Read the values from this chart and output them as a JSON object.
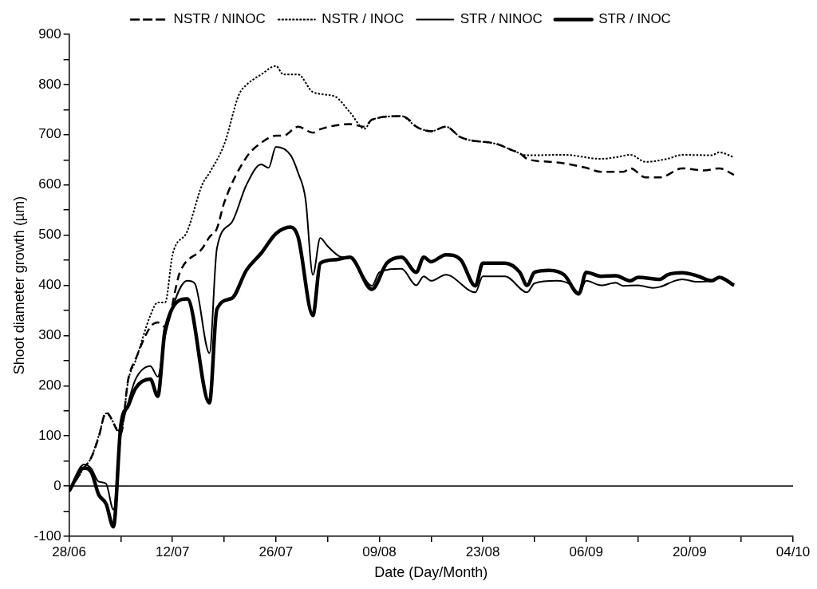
{
  "chart_data": {
    "type": "line",
    "xlabel": "Date (Day/Month)",
    "ylabel": "Shoot diameter growth (µm)",
    "xlim": [
      "--06-28",
      "--10-04"
    ],
    "xticks": [
      {
        "value": "--06-28",
        "label": "28/06"
      },
      {
        "value": "--07-05",
        "label": null
      },
      {
        "value": "--07-12",
        "label": "12/07"
      },
      {
        "value": "--07-19",
        "label": null
      },
      {
        "value": "--07-26",
        "label": "26/07"
      },
      {
        "value": "--08-02",
        "label": null
      },
      {
        "value": "--08-09",
        "label": "09/08"
      },
      {
        "value": "--08-16",
        "label": null
      },
      {
        "value": "--08-23",
        "label": "23/08"
      },
      {
        "value": "--08-30",
        "label": null
      },
      {
        "value": "--09-06",
        "label": "06/09"
      },
      {
        "value": "--09-13",
        "label": null
      },
      {
        "value": "--09-20",
        "label": "20/09"
      },
      {
        "value": "--09-27",
        "label": null
      },
      {
        "value": "--10-04",
        "label": "04/10"
      }
    ],
    "ylim": [
      -100,
      900
    ],
    "yticks": [
      -100,
      {
        "value": -50,
        "label": null
      },
      0,
      {
        "value": 50,
        "label": null
      },
      100,
      {
        "value": 150,
        "label": null
      },
      200,
      {
        "value": 250,
        "label": null
      },
      300,
      {
        "value": 350,
        "label": null
      },
      400,
      {
        "value": 450,
        "label": null
      },
      500,
      {
        "value": 550,
        "label": null
      },
      600,
      {
        "value": 650,
        "label": null
      },
      700,
      {
        "value": 750,
        "label": null
      },
      800,
      {
        "value": 850,
        "label": null
      },
      900
    ],
    "grid": false,
    "legend": "top",
    "marker": "none",
    "ref_lines": [
      {
        "axis": "y",
        "value": 0,
        "color": "#000000"
      }
    ],
    "series": [
      {
        "name": "NSTR / NINOC",
        "color": "#000000",
        "line_style": "dashed",
        "x": [
          "--06-28",
          "--06-30",
          "--07-01",
          "--07-02",
          "--07-03",
          "--07-05",
          "--07-06",
          "--07-07",
          "--07-09",
          "--07-10",
          "--07-11",
          "--07-13",
          "--07-16",
          "--07-17",
          "--07-18",
          "--07-19",
          "--07-22",
          "--07-24",
          "--07-26",
          "--07-27",
          "--07-29",
          "--07-31",
          "--08-01",
          "--08-05",
          "--08-07",
          "--08-08",
          "--08-12",
          "--08-13",
          "--08-14",
          "--08-16",
          "--08-18",
          "--08-20",
          "--08-25",
          "--08-27",
          "--08-28",
          "--08-29",
          "--09-01",
          "--09-03",
          "--09-06",
          "--09-08",
          "--09-11",
          "--09-12",
          "--09-14",
          "--09-16",
          "--09-19",
          "--09-22",
          "--09-24",
          "--09-26"
        ],
        "values": [
          -10,
          36,
          57,
          97,
          147,
          104,
          213,
          253,
          317,
          326,
          317,
          426,
          473,
          496,
          513,
          565,
          655,
          684,
          698,
          698,
          716,
          704,
          711,
          721,
          716,
          730,
          737,
          730,
          716,
          707,
          716,
          695,
          681,
          669,
          663,
          652,
          646,
          643,
          634,
          626,
          626,
          633,
          615,
          615,
          633,
          629,
          633,
          620
        ]
      },
      {
        "name": "NSTR / INOC",
        "color": "#000000",
        "line_style": "dotted",
        "x": [
          "--06-28",
          "--06-30",
          "--07-01",
          "--07-02",
          "--07-03",
          "--07-05",
          "--07-06",
          "--07-07",
          "--07-09",
          "--07-10",
          "--07-11",
          "--07-12",
          "--07-14",
          "--07-16",
          "--07-17",
          "--07-19",
          "--07-21",
          "--07-22",
          "--07-24",
          "--07-26",
          "--07-27",
          "--07-29",
          "--07-31",
          "--08-03",
          "--08-05",
          "--08-07",
          "--08-08",
          "--08-12",
          "--08-14",
          "--08-16",
          "--08-18",
          "--08-20",
          "--08-25",
          "--08-27",
          "--08-29",
          "--09-03",
          "--09-08",
          "--09-10",
          "--09-12",
          "--09-14",
          "--09-17",
          "--09-19",
          "--09-23",
          "--09-24",
          "--09-26"
        ],
        "values": [
          -10,
          36,
          57,
          100,
          145,
          108,
          210,
          250,
          340,
          366,
          366,
          461,
          508,
          600,
          624,
          681,
          780,
          799,
          820,
          837,
          820,
          820,
          785,
          776,
          745,
          712,
          730,
          737,
          716,
          707,
          716,
          695,
          681,
          669,
          659,
          660,
          652,
          655,
          660,
          646,
          652,
          660,
          659,
          665,
          655
        ]
      },
      {
        "name": "STR / NINOC",
        "color": "#000000",
        "line_style": "solid",
        "x": [
          "--06-28",
          "--06-30",
          "--07-01",
          "--07-02",
          "--07-03",
          "--07-04",
          "--07-05",
          "--07-06",
          "--07-07",
          "--07-09",
          "--07-10",
          "--07-11",
          "--07-14",
          "--07-15",
          "--07-17",
          "--07-18",
          "--07-20",
          "--07-22",
          "--07-24",
          "--07-25",
          "--07-26",
          "--07-28",
          "--07-29",
          "--07-30",
          "--07-31",
          "--08-01",
          "--08-02",
          "--08-04",
          "--08-05",
          "--08-08",
          "--08-09",
          "--08-12",
          "--08-14",
          "--08-15",
          "--08-16",
          "--08-18",
          "--08-22",
          "--08-23",
          "--08-26",
          "--08-29",
          "--08-30",
          "--09-02",
          "--09-04",
          "--09-05",
          "--09-06",
          "--09-08",
          "--09-10",
          "--09-11",
          "--09-13",
          "--09-15",
          "--09-16",
          "--09-18",
          "--09-19",
          "--09-21",
          "--09-23",
          "--09-24",
          "--09-26"
        ],
        "values": [
          -10,
          43,
          35,
          9,
          5,
          -47,
          104,
          166,
          213,
          239,
          218,
          300,
          409,
          404,
          265,
          473,
          525,
          600,
          641,
          634,
          676,
          659,
          624,
          572,
          421,
          494,
          478,
          456,
          456,
          399,
          426,
          433,
          400,
          418,
          409,
          421,
          386,
          418,
          418,
          386,
          404,
          409,
          400,
          383,
          409,
          400,
          405,
          399,
          400,
          395,
          397,
          409,
          412,
          407,
          409,
          416,
          399
        ]
      },
      {
        "name": "STR / INOC",
        "color": "#000000",
        "line_style": "solid",
        "x": [
          "--06-28",
          "--06-30",
          "--07-01",
          "--07-02",
          "--07-03",
          "--07-04",
          "--07-05",
          "--07-06",
          "--07-07",
          "--07-09",
          "--07-10",
          "--07-11",
          "--07-14",
          "--07-17",
          "--07-18",
          "--07-20",
          "--07-22",
          "--07-24",
          "--07-26",
          "--07-28",
          "--07-29",
          "--07-31",
          "--08-01",
          "--08-03",
          "--08-05",
          "--08-08",
          "--08-10",
          "--08-12",
          "--08-14",
          "--08-15",
          "--08-16",
          "--08-18",
          "--08-20",
          "--08-22",
          "--08-23",
          "--08-26",
          "--08-28",
          "--08-29",
          "--08-30",
          "--09-01",
          "--09-03",
          "--09-05",
          "--09-06",
          "--09-08",
          "--09-10",
          "--09-12",
          "--09-13",
          "--09-16",
          "--09-17",
          "--09-19",
          "--09-21",
          "--09-23",
          "--09-24",
          "--09-26"
        ],
        "values": [
          -10,
          36,
          28,
          -17,
          -35,
          -81,
          121,
          160,
          195,
          213,
          179,
          312,
          373,
          166,
          352,
          374,
          430,
          464,
          503,
          516,
          496,
          340,
          444,
          451,
          456,
          392,
          444,
          456,
          426,
          456,
          447,
          461,
          451,
          399,
          444,
          444,
          426,
          400,
          426,
          430,
          421,
          383,
          426,
          418,
          419,
          409,
          416,
          412,
          421,
          425,
          419,
          409,
          416,
          400
        ]
      }
    ]
  }
}
